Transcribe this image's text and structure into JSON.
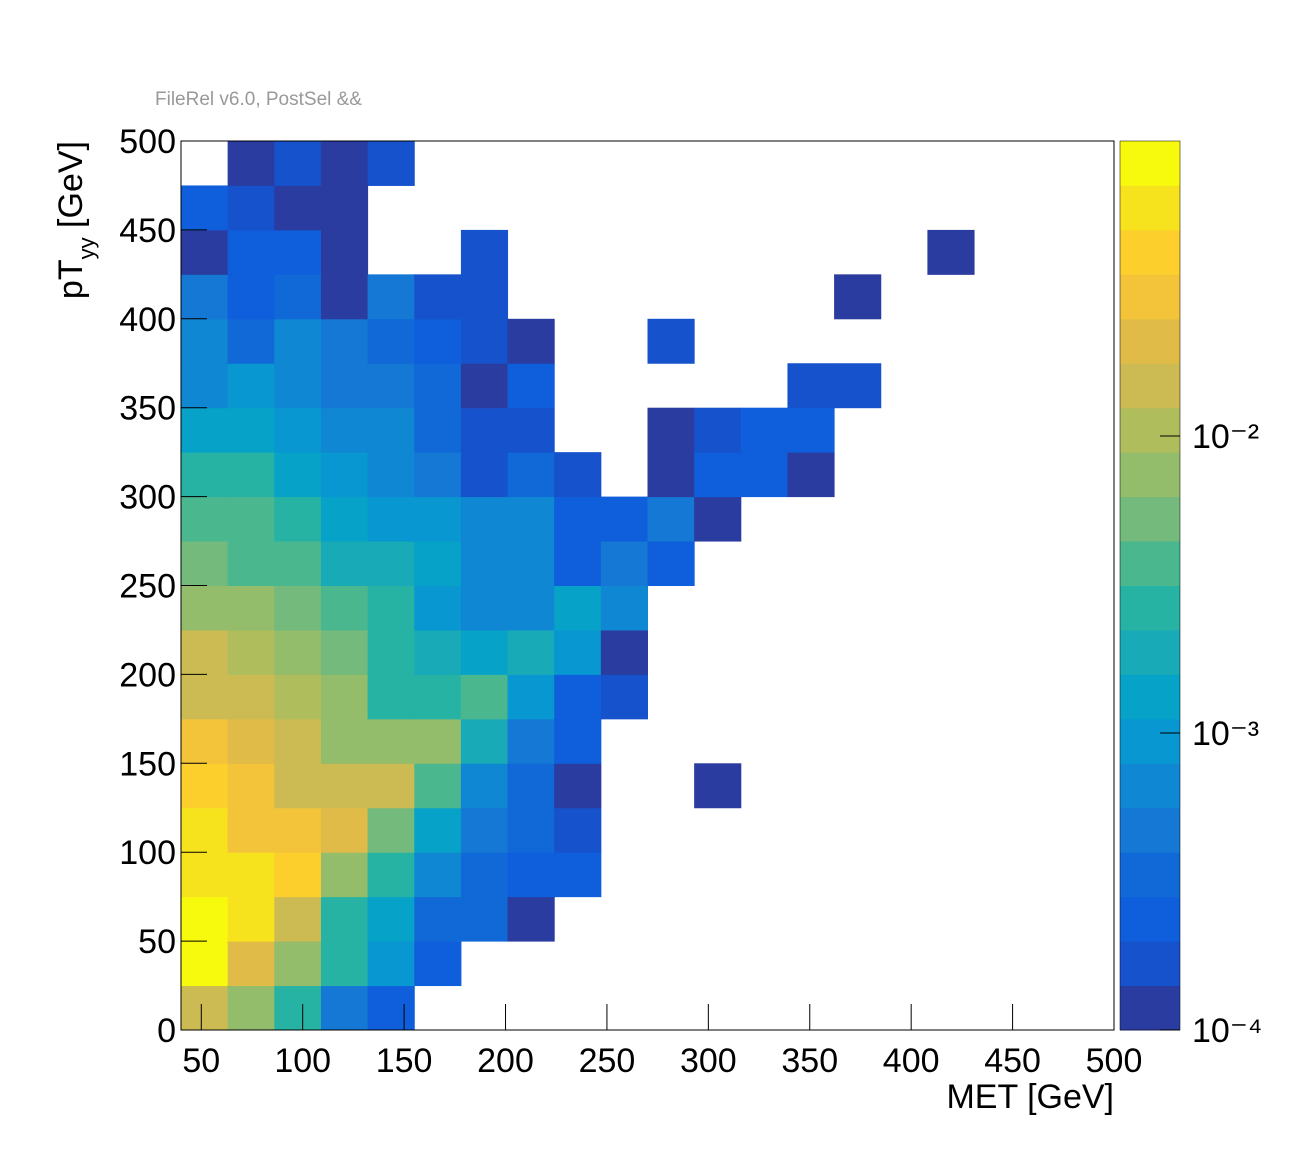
{
  "chart_data": {
    "type": "heatmap",
    "title": "FileRel v6.0, PostSel &&",
    "x_label": "MET [GeV]",
    "y_label": {
      "main": "pT",
      "sub": "yy",
      "unit": "[GeV]"
    },
    "xlim": [
      40,
      500
    ],
    "ylim": [
      0,
      500
    ],
    "xticks": [
      50,
      100,
      150,
      200,
      250,
      300,
      350,
      400,
      450,
      500
    ],
    "yticks": [
      0,
      50,
      100,
      150,
      200,
      250,
      300,
      350,
      400,
      450,
      500
    ],
    "x_bins": [
      40,
      63,
      86,
      109,
      132,
      155,
      178,
      201,
      224,
      247,
      270,
      293,
      316,
      339,
      362,
      385,
      408,
      431,
      454,
      477,
      500
    ],
    "y_bins": [
      0,
      25,
      50,
      75,
      100,
      125,
      150,
      175,
      200,
      225,
      250,
      275,
      300,
      325,
      350,
      375,
      400,
      425,
      450,
      475,
      500
    ],
    "z_scale": "log",
    "zlim": [
      0.0001,
      0.0985
    ],
    "zticks": [
      {
        "value": 0.0001,
        "label": "10⁻⁴"
      },
      {
        "value": 0.001,
        "label": "10⁻³"
      },
      {
        "value": 0.01,
        "label": "10⁻²"
      }
    ],
    "palette": [
      "#2a3c9f",
      "#1652cb",
      "#0f5fdc",
      "#1069d6",
      "#1478d4",
      "#0f87d2",
      "#0897d0",
      "#07a2c8",
      "#18aab7",
      "#27b3a4",
      "#4bb78f",
      "#73ba7c",
      "#93bc6b",
      "#b0bd5d",
      "#ccbb52",
      "#e0bb48",
      "#f3c33a",
      "#fccf2c",
      "#f7e21e",
      "#f8fa0e"
    ],
    "z": [
      [
        0.015,
        0.0075,
        0.00266,
        0.000473,
        0.000237,
        null,
        null,
        null,
        null,
        null,
        null,
        null,
        null,
        null,
        null,
        null,
        null,
        null,
        null,
        null
      ],
      [
        0.0841,
        0.0211,
        0.0075,
        0.00266,
        0.000944,
        0.000237,
        null,
        null,
        null,
        null,
        null,
        null,
        null,
        null,
        null,
        null,
        null,
        null,
        null,
        null
      ],
      [
        0.0841,
        0.0596,
        0.015,
        0.00266,
        0.00133,
        0.000335,
        0.000335,
        0.000119,
        null,
        null,
        null,
        null,
        null,
        null,
        null,
        null,
        null,
        null,
        null,
        null
      ],
      [
        0.0596,
        0.0596,
        0.0422,
        0.0075,
        0.00266,
        0.000668,
        0.000335,
        0.000237,
        0.000237,
        null,
        null,
        null,
        null,
        null,
        null,
        null,
        null,
        null,
        null,
        null
      ],
      [
        0.0596,
        0.0299,
        0.0299,
        0.0211,
        0.00531,
        0.00133,
        0.000473,
        0.000335,
        0.000168,
        null,
        null,
        null,
        null,
        null,
        null,
        null,
        null,
        null,
        null,
        null
      ],
      [
        0.0422,
        0.0299,
        0.015,
        0.015,
        0.015,
        0.00376,
        0.000668,
        0.000335,
        0.000119,
        null,
        null,
        0.000119,
        null,
        null,
        null,
        null,
        null,
        null,
        null,
        null
      ],
      [
        0.0299,
        0.0211,
        0.015,
        0.0075,
        0.0075,
        0.0075,
        0.00188,
        0.000473,
        0.000237,
        null,
        null,
        null,
        null,
        null,
        null,
        null,
        null,
        null,
        null,
        null
      ],
      [
        0.015,
        0.015,
        0.0106,
        0.0075,
        0.00266,
        0.00266,
        0.00376,
        0.000944,
        0.000237,
        0.000168,
        null,
        null,
        null,
        null,
        null,
        null,
        null,
        null,
        null,
        null
      ],
      [
        0.015,
        0.0106,
        0.0075,
        0.00531,
        0.00266,
        0.00188,
        0.00133,
        0.00188,
        0.000944,
        0.000119,
        null,
        null,
        null,
        null,
        null,
        null,
        null,
        null,
        null,
        null
      ],
      [
        0.0075,
        0.0075,
        0.00531,
        0.00376,
        0.00266,
        0.000944,
        0.000668,
        0.000668,
        0.00133,
        0.000668,
        null,
        null,
        null,
        null,
        null,
        null,
        null,
        null,
        null,
        null
      ],
      [
        0.00531,
        0.00376,
        0.00376,
        0.00188,
        0.00188,
        0.00133,
        0.000668,
        0.000668,
        0.000237,
        0.000473,
        0.000237,
        null,
        null,
        null,
        null,
        null,
        null,
        null,
        null,
        null
      ],
      [
        0.00376,
        0.00376,
        0.00266,
        0.00133,
        0.000944,
        0.000944,
        0.000668,
        0.000668,
        0.000237,
        0.000237,
        0.000473,
        0.000119,
        null,
        null,
        null,
        null,
        null,
        null,
        null,
        null
      ],
      [
        0.00266,
        0.00266,
        0.00133,
        0.000944,
        0.000668,
        0.000473,
        0.000168,
        0.000335,
        0.000168,
        null,
        0.000119,
        0.000237,
        0.000237,
        0.000119,
        null,
        null,
        null,
        null,
        null,
        null
      ],
      [
        0.00133,
        0.00133,
        0.000944,
        0.000668,
        0.000668,
        0.000335,
        0.000168,
        0.000168,
        null,
        null,
        0.000119,
        0.000168,
        0.000237,
        0.000237,
        null,
        null,
        null,
        null,
        null,
        null
      ],
      [
        0.000668,
        0.000944,
        0.000668,
        0.000473,
        0.000473,
        0.000335,
        0.000119,
        0.000237,
        null,
        null,
        null,
        null,
        null,
        0.000168,
        0.000168,
        null,
        null,
        null,
        null,
        null
      ],
      [
        0.000668,
        0.000335,
        0.000668,
        0.000473,
        0.000335,
        0.000237,
        0.000168,
        0.000119,
        null,
        null,
        0.000168,
        null,
        null,
        null,
        null,
        null,
        null,
        null,
        null,
        null
      ],
      [
        0.000473,
        0.000237,
        0.000335,
        0.000119,
        0.000473,
        0.000168,
        0.000168,
        null,
        null,
        null,
        null,
        null,
        null,
        null,
        0.000119,
        null,
        null,
        null,
        null,
        null
      ],
      [
        0.000119,
        0.000237,
        0.000237,
        0.000119,
        null,
        null,
        0.000168,
        null,
        null,
        null,
        null,
        null,
        null,
        null,
        null,
        null,
        0.000119,
        null,
        null,
        null
      ],
      [
        0.000237,
        0.000168,
        0.000119,
        0.000119,
        null,
        null,
        null,
        null,
        null,
        null,
        null,
        null,
        null,
        null,
        null,
        null,
        null,
        null,
        null,
        null
      ],
      [
        null,
        0.000119,
        0.000168,
        0.000119,
        0.000168,
        null,
        null,
        null,
        null,
        null,
        null,
        null,
        null,
        null,
        null,
        null,
        null,
        null,
        null,
        null
      ]
    ]
  }
}
